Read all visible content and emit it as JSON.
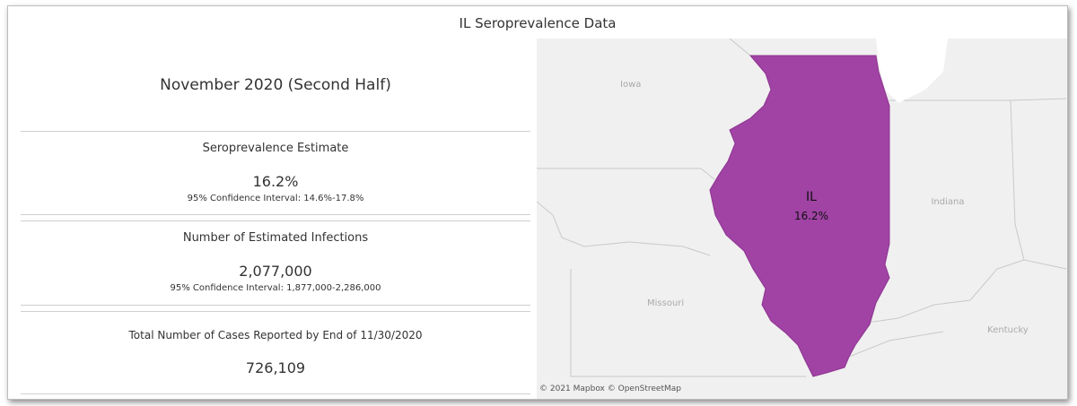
{
  "title": "IL Seroprevalence Data",
  "period": "November 2020 (Second Half)",
  "sections": [
    {
      "label": "Seroprevalence Estimate",
      "value": "16.2%",
      "interval": "95% Confidence Interval: 14.6%-17.8%"
    },
    {
      "label": "Number of Estimated Infections",
      "value": "2,077,000",
      "interval": "95% Confidence Interval: 1,877,000-2,286,000"
    },
    {
      "label": "Total Number of Cases Reported by End of 11/30/2020",
      "value": "726,109"
    }
  ],
  "map": {
    "state_labels": [
      "Iowa",
      "Missouri",
      "Indiana",
      "Kentucky"
    ],
    "highlight": {
      "name": "IL",
      "value": "16.2%"
    },
    "attribution": "© 2021 Mapbox © OpenStreetMap"
  }
}
